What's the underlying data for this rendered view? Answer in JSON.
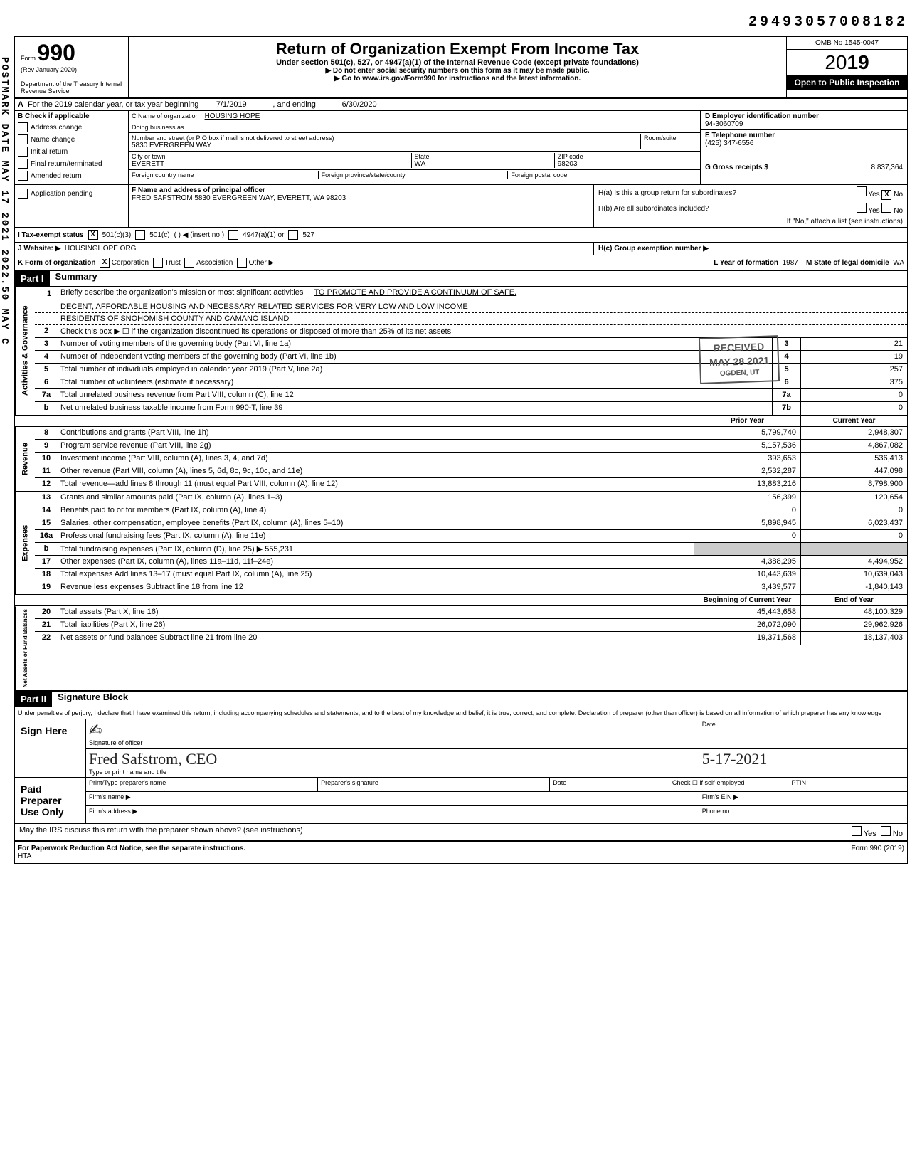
{
  "top_number": "29493057008182",
  "vertical_stamp": "POSTMARK DATE  MAY 17 2021  2022.50 MAY C",
  "header": {
    "form_label": "Form",
    "form_number": "990",
    "rev": "(Rev January 2020)",
    "dept": "Department of the Treasury Internal Revenue Service",
    "title": "Return of Organization Exempt From Income Tax",
    "subtitle": "Under section 501(c), 527, or 4947(a)(1) of the Internal Revenue Code (except private foundations)",
    "note1": "▶ Do not enter social security numbers on this form as it may be made public.",
    "note2": "▶ Go to www.irs.gov/Form990 for instructions and the latest information.",
    "omb": "OMB No 1545-0047",
    "year": "2019",
    "open": "Open to Public Inspection"
  },
  "line_a": {
    "prefix": "A",
    "text": "For the 2019 calendar year, or tax year beginning",
    "begin": "7/1/2019",
    "mid": ", and ending",
    "end": "6/30/2020"
  },
  "section_b": {
    "label": "B  Check if applicable",
    "items": [
      "Address change",
      "Name change",
      "Initial return",
      "Final return/terminated",
      "Amended return",
      "Application pending"
    ]
  },
  "section_c": {
    "name_label": "C  Name of organization",
    "name": "HOUSING HOPE",
    "dba_label": "Doing business as",
    "street_label": "Number and street (or P O box if mail is not delivered to street address)",
    "room_label": "Room/suite",
    "street": "5830 EVERGREEN WAY",
    "city_label": "City or town",
    "city": "EVERETT",
    "state_label": "State",
    "state": "WA",
    "zip_label": "ZIP code",
    "zip": "98203",
    "foreign_label": "Foreign country name",
    "foreign_prov": "Foreign province/state/county",
    "foreign_post": "Foreign postal code"
  },
  "section_d": {
    "label": "D  Employer identification number",
    "ein": "94-3060709"
  },
  "section_e": {
    "label": "E  Telephone number",
    "phone": "(425) 347-6556"
  },
  "section_g": {
    "label": "G  Gross receipts $",
    "value": "8,837,364"
  },
  "section_f": {
    "label": "F  Name and address of principal officer",
    "value": "FRED SAFSTROM 5830 EVERGREEN WAY, EVERETT, WA 98203"
  },
  "section_h": {
    "ha": "H(a) Is this a group return for subordinates?",
    "hb": "H(b) Are all subordinates included?",
    "hb_note": "If \"No,\" attach a list (see instructions)",
    "hc": "H(c) Group exemption number ▶"
  },
  "row_i": {
    "label": "I    Tax-exempt status",
    "opt1": "501(c)(3)",
    "opt2": "501(c)",
    "opt2_note": "  (     )  ◀ (insert no )",
    "opt3": "4947(a)(1) or",
    "opt4": "527"
  },
  "row_j": {
    "label": "J    Website: ▶",
    "value": "HOUSINGHOPE ORG"
  },
  "row_k": {
    "label": "K   Form of organization",
    "opts": [
      "Corporation",
      "Trust",
      "Association",
      "Other ▶"
    ],
    "l_label": "L Year of formation",
    "l_val": "1987",
    "m_label": "M State of legal domicile",
    "m_val": "WA"
  },
  "part1_label": "Part I",
  "part1_title": "Summary",
  "mission": {
    "num": "1",
    "prefix": "Briefly describe the organization's mission or most significant activities",
    "line1": "TO PROMOTE AND PROVIDE A CONTINUUM OF SAFE,",
    "line2": "DECENT, AFFORDABLE HOUSING AND NECESSARY RELATED SERVICES FOR VERY LOW AND LOW INCOME",
    "line3": "RESIDENTS OF SNOHOMISH COUNTY AND CAMANO ISLAND"
  },
  "governance_lines": [
    {
      "num": "2",
      "desc": "Check this box ▶ ☐ if the organization discontinued its operations or disposed of more than 25% of its net assets"
    },
    {
      "num": "3",
      "desc": "Number of voting members of the governing body (Part VI, line 1a)",
      "box": "3",
      "val": "21"
    },
    {
      "num": "4",
      "desc": "Number of independent voting members of the governing body (Part VI, line 1b)",
      "box": "4",
      "val": "19"
    },
    {
      "num": "5",
      "desc": "Total number of individuals employed in calendar year 2019 (Part V, line 2a)",
      "box": "5",
      "val": "257"
    },
    {
      "num": "6",
      "desc": "Total number of volunteers (estimate if necessary)",
      "box": "6",
      "val": "375"
    },
    {
      "num": "7a",
      "desc": "Total unrelated business revenue from Part VIII, column (C), line 12",
      "box": "7a",
      "val": "0"
    },
    {
      "num": "b",
      "desc": "Net unrelated business taxable income from Form 990-T, line 39",
      "box": "7b",
      "val": "0"
    }
  ],
  "col_headers": {
    "prior": "Prior Year",
    "current": "Current Year"
  },
  "revenue_lines": [
    {
      "num": "8",
      "desc": "Contributions and grants (Part VIII, line 1h)",
      "prior": "5,799,740",
      "current": "2,948,307"
    },
    {
      "num": "9",
      "desc": "Program service revenue (Part VIII, line 2g)",
      "prior": "5,157,536",
      "current": "4,867,082"
    },
    {
      "num": "10",
      "desc": "Investment income (Part VIII, column (A), lines 3, 4, and 7d)",
      "prior": "393,653",
      "current": "536,413"
    },
    {
      "num": "11",
      "desc": "Other revenue (Part VIII, column (A), lines 5, 6d, 8c, 9c, 10c, and 11e)",
      "prior": "2,532,287",
      "current": "447,098"
    },
    {
      "num": "12",
      "desc": "Total revenue—add lines 8 through 11 (must equal Part VIII, column (A), line 12)",
      "prior": "13,883,216",
      "current": "8,798,900"
    }
  ],
  "expense_lines": [
    {
      "num": "13",
      "desc": "Grants and similar amounts paid (Part IX, column (A), lines 1–3)",
      "prior": "156,399",
      "current": "120,654"
    },
    {
      "num": "14",
      "desc": "Benefits paid to or for members (Part IX, column (A), line 4)",
      "prior": "0",
      "current": "0"
    },
    {
      "num": "15",
      "desc": "Salaries, other compensation, employee benefits (Part IX, column (A), lines 5–10)",
      "prior": "5,898,945",
      "current": "6,023,437"
    },
    {
      "num": "16a",
      "desc": "Professional fundraising fees (Part IX, column (A), line 11e)",
      "prior": "0",
      "current": "0"
    },
    {
      "num": "b",
      "desc": "Total fundraising expenses (Part IX, column (D), line 25) ▶          555,231",
      "prior": "",
      "current": ""
    },
    {
      "num": "17",
      "desc": "Other expenses (Part IX, column (A), lines 11a–11d, 11f–24e)",
      "prior": "4,388,295",
      "current": "4,494,952"
    },
    {
      "num": "18",
      "desc": "Total expenses Add lines 13–17 (must equal Part IX, column (A), line 25)",
      "prior": "10,443,639",
      "current": "10,639,043"
    },
    {
      "num": "19",
      "desc": "Revenue less expenses Subtract line 18 from line 12",
      "prior": "3,439,577",
      "current": "-1,840,143"
    }
  ],
  "balance_headers": {
    "begin": "Beginning of Current Year",
    "end": "End of Year"
  },
  "balance_lines": [
    {
      "num": "20",
      "desc": "Total assets (Part X, line 16)",
      "prior": "45,443,658",
      "current": "48,100,329"
    },
    {
      "num": "21",
      "desc": "Total liabilities (Part X, line 26)",
      "prior": "26,072,090",
      "current": "29,962,926"
    },
    {
      "num": "22",
      "desc": "Net assets or fund balances Subtract line 21 from line 20",
      "prior": "19,371,568",
      "current": "18,137,403"
    }
  ],
  "part2_label": "Part II",
  "part2_title": "Signature Block",
  "sig_disclaimer": "Under penalties of perjury, I declare that I have examined this return, including accompanying schedules and statements, and to the best of my knowledge and belief, it is true, correct, and complete. Declaration of preparer (other than officer) is based on all information of which preparer has any knowledge",
  "sign_here": "Sign Here",
  "sig_officer_label": "Signature of officer",
  "sig_date_label": "Date",
  "sig_name_label": "Type or print name and title",
  "sig_name": "Fred Safstrom, CEO",
  "sig_date": "5-17-2021",
  "paid_prep": "Paid Preparer Use Only",
  "prep_labels": {
    "name": "Print/Type preparer's name",
    "sig": "Preparer's signature",
    "date": "Date",
    "check": "Check ☐ if self-employed",
    "ptin": "PTIN",
    "firm_name": "Firm's name ▶",
    "firm_ein": "Firm's EIN ▶",
    "firm_addr": "Firm's address ▶",
    "phone": "Phone no"
  },
  "irs_discuss": "May the IRS discuss this return with the preparer shown above? (see instructions)",
  "footer_left": "For Paperwork Reduction Act Notice, see the separate instructions.",
  "footer_hta": "HTA",
  "footer_right": "Form 990 (2019)",
  "stamp": {
    "received": "RECEIVED",
    "date": "MAY 28 2021",
    "ogden": "OGDEN, UT"
  },
  "side_labels": {
    "gov": "Activities & Governance",
    "rev": "Revenue",
    "exp": "Expenses",
    "bal": "Net Assets or Fund Balances"
  }
}
